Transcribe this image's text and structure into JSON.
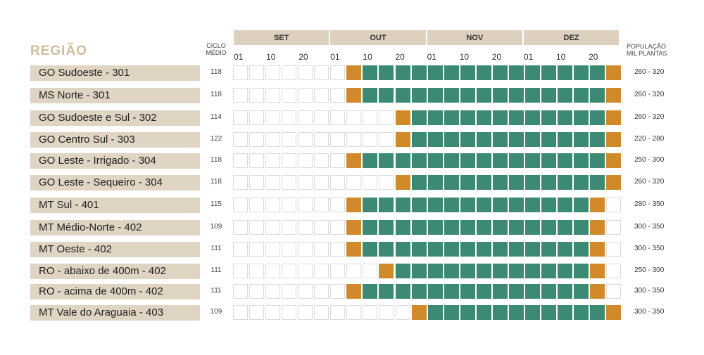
{
  "headers": {
    "region": "REGIÃO",
    "cycle_line1": "CICLO",
    "cycle_line2": "MÉDIO",
    "pop_line1": "POPULAÇÃO",
    "pop_line2": "MIL PLANTAS"
  },
  "colors": {
    "border": "#f2a0a0",
    "early": "#d08a2a",
    "main": "#3d8a74",
    "month_header": "#ddd0bf",
    "label_bg": "#e0d4c3",
    "heading": "#d1bc9c"
  },
  "chart_data": {
    "type": "table",
    "months": [
      "SET",
      "OUT",
      "NOV",
      "DEZ"
    ],
    "periods_per_month": 6,
    "tick_labels": [
      "01",
      "10",
      "20"
    ],
    "legend": [],
    "rows": [
      {
        "region": "GO Sudoeste - 301",
        "cycle": "118",
        "population": "260 - 320",
        "early": [
          7,
          23
        ],
        "main_start": 8,
        "main_end": 22
      },
      {
        "region": "MS Norte - 301",
        "cycle": "118",
        "population": "260 - 320",
        "early": [
          7,
          23
        ],
        "main_start": 8,
        "main_end": 22
      },
      {
        "region": "GO Sudoeste e Sul - 302",
        "cycle": "114",
        "population": "260 - 320",
        "early": [
          10,
          23
        ],
        "main_start": 11,
        "main_end": 22
      },
      {
        "region": "GO Centro Sul - 303",
        "cycle": "122",
        "population": "220 - 280",
        "early": [
          10,
          23
        ],
        "main_start": 11,
        "main_end": 22
      },
      {
        "region": "GO Leste - Irrigado - 304",
        "cycle": "118",
        "population": "250 - 300",
        "early": [
          7,
          23
        ],
        "main_start": 8,
        "main_end": 22
      },
      {
        "region": "GO Leste - Sequeiro - 304",
        "cycle": "118",
        "population": "260 - 320",
        "early": [
          10,
          23
        ],
        "main_start": 11,
        "main_end": 22
      },
      {
        "region": "MT Sul - 401",
        "cycle": "115",
        "population": "280 - 350",
        "early": [
          7,
          22
        ],
        "main_start": 8,
        "main_end": 21
      },
      {
        "region": "MT Médio-Norte - 402",
        "cycle": "109",
        "population": "300 - 350",
        "early": [
          7,
          22
        ],
        "main_start": 8,
        "main_end": 21
      },
      {
        "region": "MT Oeste - 402",
        "cycle": "111",
        "population": "300 - 350",
        "early": [
          7,
          22
        ],
        "main_start": 8,
        "main_end": 21
      },
      {
        "region": "RO - abaixo de 400m - 402",
        "cycle": "111",
        "population": "250 - 300",
        "early": [
          9,
          22
        ],
        "main_start": 10,
        "main_end": 21
      },
      {
        "region": "RO - acima de 400m - 402",
        "cycle": "111",
        "population": "300 - 350",
        "early": [
          7,
          22
        ],
        "main_start": 8,
        "main_end": 21
      },
      {
        "region": "MT Vale do Araguaia - 403",
        "cycle": "109",
        "population": "300 - 350",
        "early": [
          11,
          23
        ],
        "main_start": 12,
        "main_end": 22
      }
    ]
  }
}
